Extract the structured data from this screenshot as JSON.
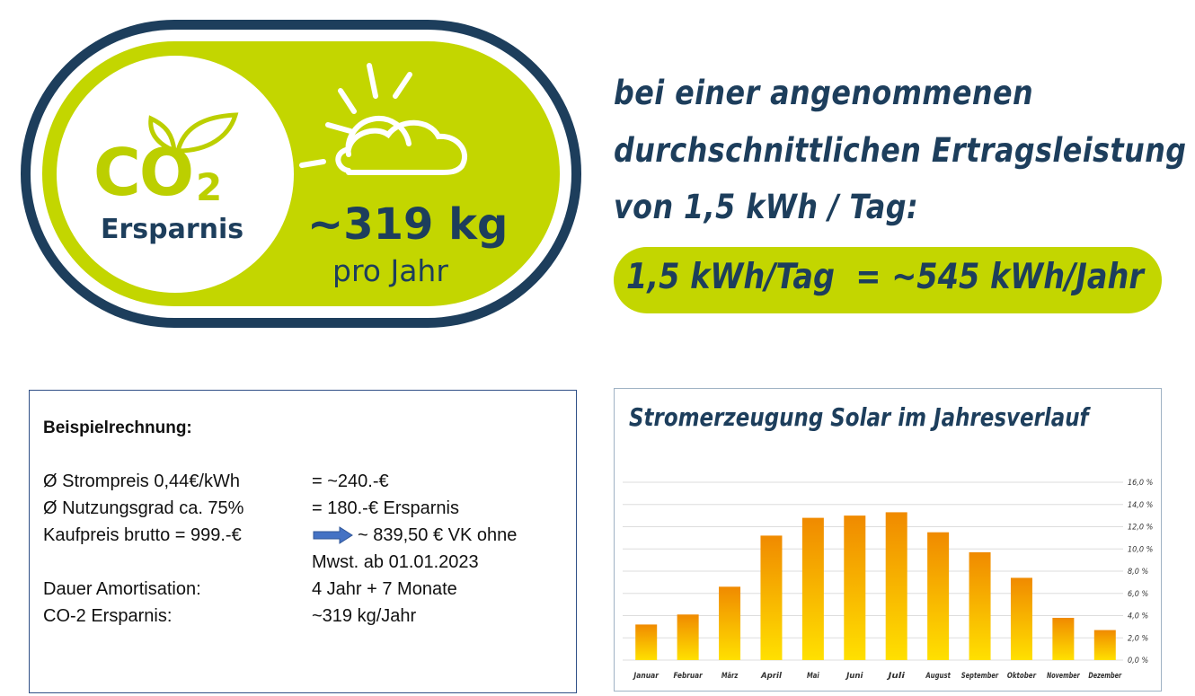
{
  "badge": {
    "co2": "CO",
    "co2_sub": "2",
    "ersparnis": "Ersparnis",
    "amount": "~319 kg",
    "per_year": "pro Jahr",
    "colors": {
      "lime": "#bccf00",
      "navy": "#1d3e5c"
    },
    "icons": [
      "leaves-icon",
      "sun-cloud-icon"
    ]
  },
  "headline": {
    "line1": "bei einer angenommenen",
    "line2": "durchschnittlichen Ertragsleistung",
    "line3": "von 1,5 kWh / Tag:",
    "pill": "1,5 kWh/Tag  = ~545 kWh/Jahr"
  },
  "calculation": {
    "title": "Beispielrechnung:",
    "rows": [
      {
        "label": "Ø Strompreis 0,44€/kWh",
        "value": "= ~240.-€"
      },
      {
        "label": "Ø Nutzungsgrad ca. 75%",
        "value": "= 180.-€ Ersparnis"
      },
      {
        "label": "Kaufpreis brutto = 999.-€",
        "value": "~ 839,50 € VK ohne"
      },
      {
        "label": "",
        "value": "Mwst. ab 01.01.2023"
      },
      {
        "label": "Dauer Amortisation:",
        "value": "4 Jahr + 7 Monate"
      },
      {
        "label": "CO-2 Ersparnis:",
        "value": "~319 kg/Jahr"
      }
    ],
    "arrow_icon": "arrow-right-icon",
    "arrow_color": "#4472c4"
  },
  "chart_data": {
    "type": "bar",
    "title": "Stromerzeugung Solar im Jahresverlauf",
    "categories": [
      "Januar",
      "Februar",
      "März",
      "April",
      "Mai",
      "Juni",
      "Juli",
      "August",
      "September",
      "Oktober",
      "November",
      "Dezember"
    ],
    "values": [
      3.2,
      4.1,
      6.6,
      11.2,
      12.8,
      13.0,
      13.3,
      11.5,
      9.7,
      7.4,
      3.8,
      2.7
    ],
    "ylim": [
      0,
      16
    ],
    "yticks": [
      "0,0 %",
      "2,0 %",
      "4,0 %",
      "6,0 %",
      "8,0 %",
      "10,0 %",
      "12,0 %",
      "14,0 %",
      "16,0 %"
    ],
    "grid": true,
    "colors": {
      "top": "#f08a00",
      "bottom": "#ffe000"
    }
  }
}
